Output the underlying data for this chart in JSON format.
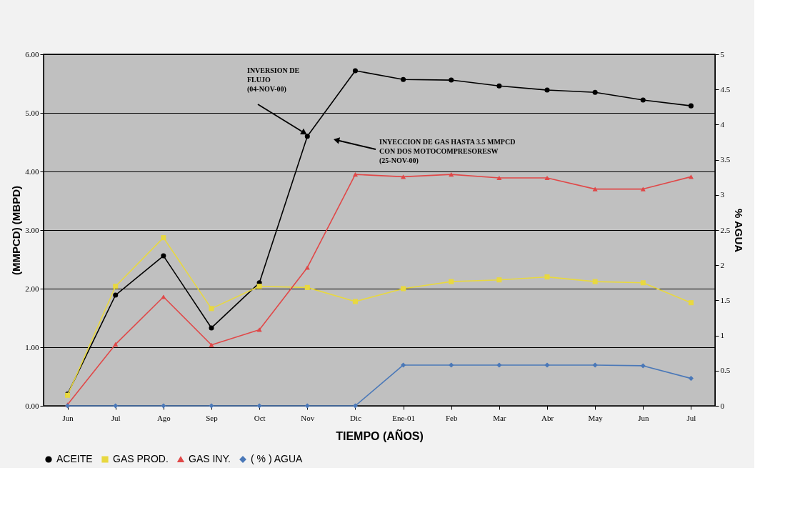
{
  "chart_data": {
    "type": "line",
    "xlabel": "TIEMPO (AÑOS)",
    "ylabel": "(MMPCD)    (MBPD)",
    "y2label": "% AGUA",
    "categories": [
      "Jun",
      "Jul",
      "Ago",
      "Sep",
      "Oct",
      "Nov",
      "Dic",
      "Ene-01",
      "Feb",
      "Mar",
      "Abr",
      "May",
      "Jun",
      "Jul"
    ],
    "series": [
      {
        "name": "ACEITE",
        "color": "#000000",
        "marker": "circle",
        "values": [
          0.2,
          1.89,
          2.56,
          1.33,
          2.1,
          4.6,
          5.72,
          5.57,
          5.56,
          5.46,
          5.39,
          5.35,
          5.22,
          5.12
        ]
      },
      {
        "name": "GAS PROD.",
        "color": "#e8d840",
        "marker": "square",
        "values": [
          0.18,
          2.04,
          2.87,
          1.66,
          2.04,
          2.02,
          1.78,
          2.0,
          2.12,
          2.15,
          2.2,
          2.12,
          2.1,
          1.76
        ]
      },
      {
        "name": "GAS INY.",
        "color": "#e04848",
        "marker": "triangle",
        "values": [
          0.02,
          1.05,
          1.86,
          1.04,
          1.3,
          2.36,
          3.95,
          3.91,
          3.95,
          3.89,
          3.89,
          3.7,
          3.7,
          3.91
        ]
      },
      {
        "name": "( % ) AGUA",
        "color": "#4a78b8",
        "marker": "diamond",
        "axis": "y2",
        "values": [
          0,
          0,
          0,
          0,
          0,
          0,
          0,
          0.58,
          0.58,
          0.58,
          0.58,
          0.58,
          0.57,
          0.39
        ]
      }
    ],
    "ylim": [
      0,
      6
    ],
    "yticks": [
      {
        "value": 0,
        "label": "0.00"
      },
      {
        "value": 1,
        "label": "1.00"
      },
      {
        "value": 2,
        "label": "2.00"
      },
      {
        "value": 3,
        "label": "3.00"
      },
      {
        "value": 4,
        "label": "4.00"
      },
      {
        "value": 5,
        "label": "5.00"
      },
      {
        "value": 6,
        "label": "6.00"
      }
    ],
    "y2lim": [
      0,
      5
    ],
    "y2ticks": [
      0,
      0.5,
      1,
      1.5,
      2,
      2.5,
      3,
      3.5,
      4,
      4.5,
      5
    ],
    "grid": "y",
    "legend": "bottom",
    "annotations": [
      "INVERSION DE\nFLUJO\n(04-NOV-00)",
      "INYECCION DE GAS HASTA 3.5 MMPCD\nCON DOS MOTOCOMPRESORESW\n(25-NOV-00)"
    ]
  }
}
